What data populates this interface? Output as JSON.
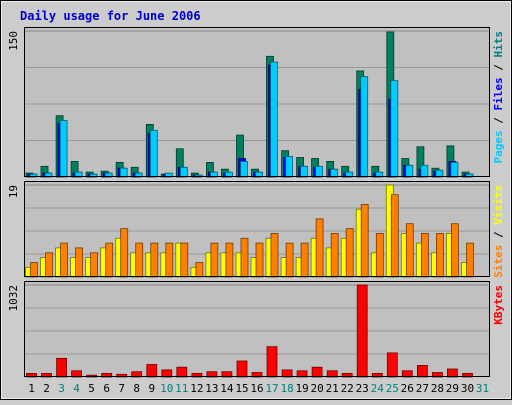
{
  "chart_data": {
    "type": "bar",
    "title": "Daily usage for June 2006",
    "categories": [
      "1",
      "2",
      "3",
      "4",
      "5",
      "6",
      "7",
      "8",
      "9",
      "10",
      "11",
      "12",
      "13",
      "14",
      "15",
      "16",
      "17",
      "18",
      "19",
      "20",
      "21",
      "22",
      "23",
      "24",
      "25",
      "26",
      "27",
      "28",
      "29",
      "30",
      "31"
    ],
    "weekend_days": [
      "3",
      "4",
      "10",
      "11",
      "17",
      "18",
      "24",
      "25",
      "31"
    ],
    "panels": [
      {
        "id": "hits-files-pages",
        "ymax": 150,
        "ymax_label": "150",
        "side_labels": [
          {
            "text": "Pages",
            "color": "#00ccff"
          },
          {
            "text": " / ",
            "color": "#000000"
          },
          {
            "text": "Files",
            "color": "#0000ff"
          },
          {
            "text": " / ",
            "color": "#000000"
          },
          {
            "text": "Hits",
            "color": "#008080"
          }
        ],
        "series": [
          {
            "name": "Hits",
            "color": "#008060",
            "values": [
              4,
              11,
              63,
              16,
              5,
              6,
              15,
              10,
              54,
              3,
              29,
              4,
              15,
              8,
              43,
              8,
              124,
              27,
              20,
              19,
              16,
              11,
              109,
              11,
              149,
              19,
              31,
              9,
              32,
              5,
              0
            ]
          },
          {
            "name": "Files",
            "color": "#0000ff",
            "values": [
              3,
              4,
              55,
              4,
              3,
              4,
              9,
              4,
              45,
              3,
              10,
              2,
              5,
              4,
              19,
              5,
              115,
              20,
              11,
              10,
              8,
              4,
              90,
              4,
              80,
              12,
              8,
              6,
              16,
              3,
              0
            ]
          },
          {
            "name": "Pages",
            "color": "#00ccff",
            "values": [
              3,
              4,
              58,
              5,
              3,
              4,
              9,
              4,
              48,
              4,
              10,
              2,
              5,
              5,
              16,
              5,
              118,
              21,
              11,
              11,
              8,
              5,
              103,
              5,
              99,
              12,
              12,
              7,
              15,
              3,
              0
            ]
          }
        ]
      },
      {
        "id": "visits-sites",
        "ymax": 19,
        "ymax_label": "19",
        "side_labels": [
          {
            "text": "Sites",
            "color": "#ff8000"
          },
          {
            "text": " / ",
            "color": "#000000"
          },
          {
            "text": "Visits",
            "color": "#ffff00"
          }
        ],
        "series": [
          {
            "name": "Visits",
            "color": "#ffff00",
            "values": [
              2,
              4,
              6,
              4,
              4,
              6,
              8,
              5,
              5,
              5,
              7,
              2,
              5,
              5,
              5,
              4,
              8,
              4,
              4,
              8,
              6,
              8,
              14,
              5,
              19,
              9,
              7,
              5,
              9,
              3,
              0
            ]
          },
          {
            "name": "Sites",
            "color": "#ff8000",
            "values": [
              3,
              5,
              7,
              6,
              5,
              7,
              10,
              7,
              7,
              7,
              7,
              3,
              7,
              7,
              8,
              7,
              9,
              7,
              7,
              12,
              9,
              10,
              15,
              9,
              17,
              11,
              9,
              9,
              11,
              7,
              0
            ]
          }
        ]
      },
      {
        "id": "kbytes",
        "ymax": 1032,
        "ymax_label": "1032",
        "side_labels": [
          {
            "text": "KBytes",
            "color": "#ff0000"
          }
        ],
        "series": [
          {
            "name": "KBytes",
            "color": "#ff0000",
            "values": [
              40,
              40,
              210,
              70,
              20,
              40,
              30,
              60,
              140,
              80,
              110,
              40,
              60,
              60,
              180,
              50,
              340,
              80,
              70,
              110,
              70,
              40,
              1032,
              40,
              270,
              70,
              130,
              50,
              90,
              40,
              0
            ]
          }
        ]
      }
    ]
  }
}
